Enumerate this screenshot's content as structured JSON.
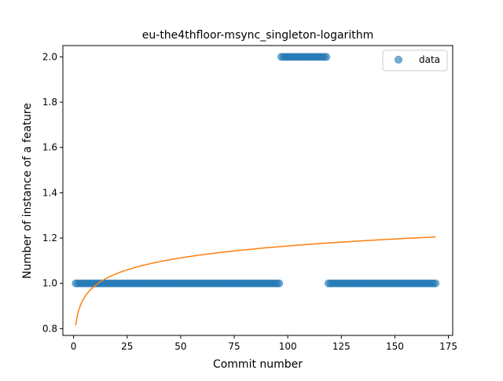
{
  "chart_data": {
    "type": "scatter",
    "title": "eu-the4thfloor-msync_singleton-logarithm",
    "xlabel": "Commit number",
    "ylabel": "Number of instance of a feature",
    "xlim": [
      -5,
      177
    ],
    "ylim": [
      0.77,
      2.05
    ],
    "x_ticks": [
      0,
      25,
      50,
      75,
      100,
      125,
      150,
      175
    ],
    "y_ticks": [
      0.8,
      1.0,
      1.2,
      1.4,
      1.6,
      1.8,
      2.0
    ],
    "x_tick_labels": [
      "0",
      "25",
      "50",
      "75",
      "100",
      "125",
      "150",
      "175"
    ],
    "y_tick_labels": [
      "0.8",
      "1.0",
      "1.2",
      "1.4",
      "1.6",
      "1.8",
      "2.0"
    ],
    "grid": false,
    "legend_placement": "top-right",
    "series": [
      {
        "name": "data",
        "kind": "scatter",
        "color": "#1f77b4",
        "segments": [
          {
            "x_start": 1,
            "x_end": 96,
            "y": 1.0
          },
          {
            "x_start": 97,
            "x_end": 118,
            "y": 2.0
          },
          {
            "x_start": 119,
            "x_end": 169,
            "y": 1.0
          }
        ]
      },
      {
        "kind": "line",
        "color": "#ff7f0e",
        "model": "logarithmic",
        "a": 0.8146,
        "b": 0.0761,
        "x_range": [
          1,
          169
        ]
      }
    ]
  }
}
